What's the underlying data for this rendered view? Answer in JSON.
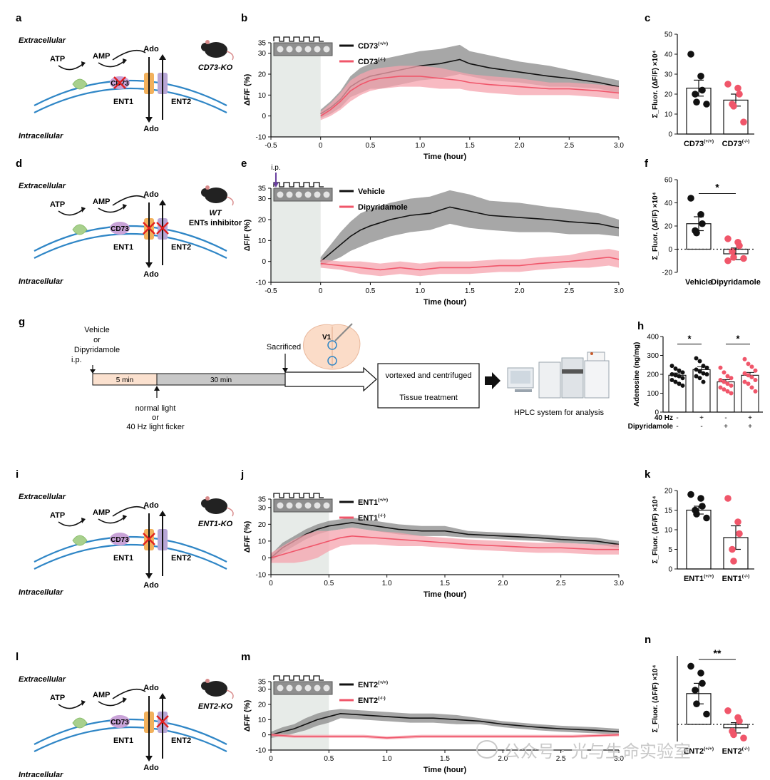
{
  "colors": {
    "wt_line": "#111111",
    "wt_band": "#8a8a8a",
    "ko_line": "#f0566a",
    "ko_band": "#f5a3ad",
    "membrane": "#2f86c6",
    "ent1": "#f2b15c",
    "ent2": "#b7a6d6",
    "cd73": "#c9a3d8",
    "enzyme": "#a8d08d",
    "light": "#e7ebe8",
    "timebar_pre": "#fbe1cf",
    "timebar_main": "#c8c8c8"
  },
  "panels": [
    {
      "label": "a",
      "extracellular": "Extracellular",
      "intracellular": "Intracellular",
      "atp": "ATP",
      "amp": "AMP",
      "ado_top": "Ado",
      "ado_bottom": "Ado",
      "cd73": "CD73",
      "ent1": "ENT1",
      "ent2": "ENT2",
      "mouse_label": "CD73-KO",
      "mouse_sublabel": "",
      "blocked": [
        "cd73"
      ]
    },
    {
      "label": "d",
      "extracellular": "Extracellular",
      "intracellular": "Intracellular",
      "atp": "ATP",
      "amp": "AMP",
      "ado_top": "Ado",
      "ado_bottom": "Ado",
      "cd73": "CD73",
      "ent1": "ENT1",
      "ent2": "ENT2",
      "mouse_label": "WT",
      "mouse_sublabel": "ENTs inhibitor",
      "blocked": [
        "ent1",
        "ent2"
      ]
    },
    {
      "label": "i",
      "extracellular": "Extracellular",
      "intracellular": "Intracellular",
      "atp": "ATP",
      "amp": "AMP",
      "ado_top": "Ado",
      "ado_bottom": "Ado",
      "cd73": "CD73",
      "ent1": "ENT1",
      "ent2": "ENT2",
      "mouse_label": "ENT1-KO",
      "mouse_sublabel": "",
      "blocked": [
        "ent1"
      ]
    },
    {
      "label": "l",
      "extracellular": "Extracellular",
      "intracellular": "Intracellular",
      "atp": "ATP",
      "amp": "AMP",
      "ado_top": "Ado",
      "ado_bottom": "Ado",
      "cd73": "CD73",
      "ent1": "ENT1",
      "ent2": "ENT2",
      "mouse_label": "ENT2-KO",
      "mouse_sublabel": "",
      "blocked": [
        "ent2"
      ]
    }
  ],
  "panel_g": {
    "label": "g",
    "injection": [
      "Vehicle",
      "or",
      "Dipyridamole",
      "i.p."
    ],
    "pre_label": "5 min",
    "main_label": "30 min",
    "sacrificed": "Sacrificed",
    "region": "V1",
    "stimulus": [
      "normal light",
      "or",
      "40 Hz light ficker"
    ],
    "treatment_lines": [
      "vortexed  and centrifuged",
      "Tissue treatment"
    ],
    "hplc": "HPLC system for analysis"
  },
  "chart_data": [
    {
      "panel": "b",
      "type": "line",
      "xlabel": "Time (hour)",
      "ylabel": "ΔF/F (%)",
      "xlim": [
        -0.5,
        3.0
      ],
      "ylim": [
        -10,
        35
      ],
      "xticks": [
        -0.5,
        0,
        0.5,
        1.0,
        1.5,
        2.0,
        2.5,
        3.0
      ],
      "xtick_labels": [
        "-0.5",
        "0",
        "0.5",
        "1.0",
        "1.5",
        "2.0",
        "2.5",
        "3.0"
      ],
      "yticks": [
        -10,
        0,
        10,
        20,
        30,
        35
      ],
      "shade": [
        -0.5,
        0.0
      ],
      "series": [
        {
          "name": "CD73",
          "sup": "(+/+)",
          "color": "#111111",
          "band": "#8a8a8a",
          "x": [
            0,
            0.1,
            0.2,
            0.3,
            0.4,
            0.5,
            0.6,
            0.8,
            1.0,
            1.2,
            1.4,
            1.5,
            1.7,
            2.0,
            2.3,
            2.5,
            2.8,
            3.0
          ],
          "y": [
            1,
            4,
            8,
            14,
            17,
            19,
            20,
            22,
            24,
            25,
            27,
            25,
            23,
            21,
            19,
            18,
            16,
            14
          ],
          "err": [
            2,
            3,
            4,
            5,
            6,
            6,
            7,
            7,
            7,
            7,
            7,
            6,
            6,
            5,
            5,
            4,
            3,
            3
          ]
        },
        {
          "name": "CD73",
          "sup": "(-/-)",
          "color": "#f0566a",
          "band": "#f5a3ad",
          "x": [
            0,
            0.1,
            0.2,
            0.3,
            0.4,
            0.5,
            0.6,
            0.8,
            1.0,
            1.2,
            1.4,
            1.5,
            1.7,
            2.0,
            2.3,
            2.5,
            2.8,
            3.0
          ],
          "y": [
            0,
            3,
            7,
            12,
            15,
            17,
            18,
            19,
            19,
            18,
            17,
            16,
            15,
            14,
            13,
            13,
            12,
            11
          ],
          "err": [
            2,
            3,
            4,
            5,
            5,
            5,
            5,
            5,
            5,
            5,
            4,
            4,
            4,
            4,
            3,
            3,
            3,
            3
          ]
        }
      ]
    },
    {
      "panel": "e",
      "type": "line",
      "xlabel": "Time (hour)",
      "ylabel": "ΔF/F (%)",
      "xlim": [
        -0.5,
        3.0
      ],
      "ylim": [
        -10,
        35
      ],
      "xticks": [
        -0.5,
        0,
        0.5,
        1.0,
        1.5,
        2.0,
        2.5,
        3.0
      ],
      "xtick_labels": [
        "-0.5",
        "0",
        "0.5",
        "1.0",
        "1.5",
        "2.0",
        "2.5",
        "3.0"
      ],
      "yticks": [
        -10,
        0,
        10,
        20,
        30,
        35
      ],
      "shade": [
        -0.5,
        0.0
      ],
      "injection_label": "i.p.",
      "injection_x": -0.45,
      "series": [
        {
          "name": "Vehicle",
          "sup": "",
          "color": "#111111",
          "band": "#8a8a8a",
          "x": [
            0,
            0.1,
            0.2,
            0.3,
            0.4,
            0.5,
            0.7,
            0.9,
            1.1,
            1.3,
            1.5,
            1.7,
            2.0,
            2.3,
            2.5,
            2.8,
            3.0
          ],
          "y": [
            0,
            4,
            8,
            12,
            15,
            17,
            20,
            22,
            23,
            26,
            24,
            22,
            21,
            20,
            19,
            18,
            16
          ],
          "err": [
            2,
            4,
            6,
            7,
            8,
            8,
            8,
            8,
            8,
            8,
            8,
            7,
            7,
            6,
            6,
            5,
            4
          ]
        },
        {
          "name": "Dipyridamole",
          "sup": "",
          "color": "#f0566a",
          "band": "#f5a3ad",
          "x": [
            0,
            0.2,
            0.4,
            0.6,
            0.8,
            1.0,
            1.2,
            1.5,
            1.8,
            2.0,
            2.2,
            2.5,
            2.7,
            2.9,
            3.0
          ],
          "y": [
            -1,
            -2,
            -3,
            -4,
            -3,
            -4,
            -3,
            -3,
            -2,
            -2,
            -1,
            0,
            1,
            2,
            1
          ],
          "err": [
            2,
            2,
            3,
            3,
            3,
            3,
            3,
            3,
            3,
            3,
            3,
            3,
            4,
            4,
            4
          ]
        }
      ]
    },
    {
      "panel": "j",
      "type": "line",
      "xlabel": "Time (hour)",
      "ylabel": "ΔF/F (%)",
      "xlim": [
        0,
        3.0
      ],
      "ylim": [
        -10,
        35
      ],
      "xticks": [
        0,
        0.5,
        1.0,
        1.5,
        2.0,
        2.5,
        3.0
      ],
      "xtick_labels": [
        "0",
        "0.5",
        "1.0",
        "1.5",
        "2.0",
        "2.5",
        "3.0"
      ],
      "yticks": [
        -10,
        0,
        10,
        20,
        30,
        35
      ],
      "shade": [
        0,
        0.5
      ],
      "series": [
        {
          "name": "ENT1",
          "sup": "(+/+)",
          "color": "#111111",
          "band": "#8a8a8a",
          "x": [
            0,
            0.1,
            0.2,
            0.3,
            0.4,
            0.5,
            0.6,
            0.7,
            0.9,
            1.1,
            1.3,
            1.5,
            1.7,
            2.0,
            2.3,
            2.5,
            2.8,
            3.0
          ],
          "y": [
            0,
            6,
            10,
            14,
            17,
            19,
            20,
            21,
            19,
            17,
            16,
            16,
            14,
            13,
            12,
            11,
            10,
            8
          ],
          "err": [
            2,
            3,
            3,
            3,
            3,
            3,
            3,
            3,
            3,
            3,
            3,
            3,
            2,
            2,
            2,
            2,
            2,
            2
          ]
        },
        {
          "name": "ENT1",
          "sup": "(-/-)",
          "color": "#f0566a",
          "band": "#f5a3ad",
          "x": [
            0,
            0.1,
            0.2,
            0.3,
            0.4,
            0.5,
            0.6,
            0.7,
            0.9,
            1.1,
            1.3,
            1.5,
            1.7,
            2.0,
            2.3,
            2.5,
            2.8,
            3.0
          ],
          "y": [
            0,
            2,
            4,
            6,
            8,
            10,
            12,
            13,
            12,
            11,
            10,
            9,
            8,
            7,
            6,
            6,
            5,
            5
          ],
          "err": [
            3,
            5,
            7,
            8,
            8,
            6,
            5,
            5,
            4,
            4,
            3,
            3,
            3,
            3,
            3,
            3,
            3,
            3
          ]
        }
      ]
    },
    {
      "panel": "m",
      "type": "line",
      "xlabel": "Time (hour)",
      "ylabel": "ΔF/F (%)",
      "xlim": [
        0,
        3.0
      ],
      "ylim": [
        -10,
        35
      ],
      "xticks": [
        0,
        0.5,
        1.0,
        1.5,
        2.0,
        2.5,
        3.0
      ],
      "xtick_labels": [
        "0",
        "0.5",
        "1.0",
        "1.5",
        "2.0",
        "2.5",
        "3.0"
      ],
      "yticks": [
        -10,
        0,
        10,
        20,
        30,
        35
      ],
      "shade": [
        0,
        0.5
      ],
      "series": [
        {
          "name": "ENT2",
          "sup": "(+/+)",
          "color": "#111111",
          "band": "#8a8a8a",
          "x": [
            0,
            0.1,
            0.2,
            0.3,
            0.4,
            0.5,
            0.6,
            0.8,
            1.0,
            1.2,
            1.4,
            1.6,
            1.8,
            2.0,
            2.3,
            2.5,
            2.8,
            3.0
          ],
          "y": [
            0,
            2,
            4,
            7,
            10,
            12,
            14,
            13,
            12,
            11,
            11,
            10,
            9,
            7,
            5,
            4,
            3,
            2
          ],
          "err": [
            2,
            3,
            3,
            4,
            4,
            4,
            3,
            3,
            3,
            3,
            3,
            3,
            2,
            2,
            2,
            2,
            2,
            2
          ]
        },
        {
          "name": "ENT2",
          "sup": "(-/-)",
          "color": "#f0566a",
          "band": "#f5a3ad",
          "x": [
            0,
            0.2,
            0.4,
            0.6,
            0.8,
            1.0,
            1.3,
            1.6,
            2.0,
            2.3,
            2.6,
            3.0
          ],
          "y": [
            0,
            -1,
            -1,
            -1,
            -1,
            -2,
            -1,
            -1,
            -1,
            -1,
            -1,
            0
          ],
          "err": [
            1,
            1,
            1,
            1,
            1,
            1,
            1,
            1,
            1,
            1,
            1,
            1
          ]
        }
      ]
    },
    {
      "panel": "c",
      "type": "bar",
      "ylabel": "Σ_Fluor. (ΔF/F) ×10⁴",
      "ylim": [
        0,
        50
      ],
      "yticks": [
        0,
        10,
        20,
        30,
        40,
        50
      ],
      "zero_dotted": false,
      "categories": [
        "CD73",
        "CD73"
      ],
      "category_sups": [
        "(+/+)",
        "(-/-)"
      ],
      "values": [
        23,
        17
      ],
      "errors": [
        4,
        3
      ],
      "points": [
        [
          40,
          29,
          22,
          20,
          16,
          15
        ],
        [
          25,
          23,
          20,
          15,
          14,
          6
        ]
      ],
      "significance": []
    },
    {
      "panel": "f",
      "type": "bar",
      "ylabel": "Σ_Fluor. (ΔF/F) ×10⁴",
      "ylim": [
        -20,
        60
      ],
      "yticks": [
        -20,
        0,
        20,
        40,
        60
      ],
      "zero_dotted": true,
      "categories": [
        "Vehicle",
        "Dipyridamole"
      ],
      "category_sups": [
        "",
        ""
      ],
      "values": [
        22,
        -4
      ],
      "errors": [
        6,
        5
      ],
      "points": [
        [
          44,
          30,
          22,
          16,
          14
        ],
        [
          9,
          6,
          3,
          -2,
          -7,
          -8,
          -10
        ]
      ],
      "significance": [
        {
          "from": 0,
          "to": 1,
          "y": 48,
          "text": "*"
        }
      ]
    },
    {
      "panel": "k",
      "type": "bar",
      "ylabel": "Σ_Fluor. (ΔF/F) ×10⁴",
      "ylim": [
        0,
        20
      ],
      "yticks": [
        0,
        5,
        10,
        15,
        20
      ],
      "zero_dotted": false,
      "categories": [
        "ENT1",
        "ENT1"
      ],
      "category_sups": [
        "(+/+)",
        "(-/-)"
      ],
      "values": [
        15,
        8
      ],
      "errors": [
        1,
        3
      ],
      "points": [
        [
          19,
          18,
          16,
          15,
          14,
          13
        ],
        [
          18,
          12,
          9,
          5,
          2
        ]
      ],
      "significance": []
    },
    {
      "panel": "n",
      "type": "bar",
      "ylabel": "Σ_Fluor. (ΔF/F) ×10⁴",
      "ylim": [
        -5,
        20
      ],
      "yticks": [],
      "zero_dotted": true,
      "categories": [
        "ENT2",
        "ENT2"
      ],
      "category_sups": [
        "(+/+)",
        "(-/-)"
      ],
      "values": [
        9,
        -1
      ],
      "errors": [
        3,
        1.5
      ],
      "points": [
        [
          17,
          15,
          12,
          10,
          6,
          3
        ],
        [
          4,
          2,
          1,
          -2,
          -3,
          -4
        ]
      ],
      "significance": [
        {
          "from": 0,
          "to": 1,
          "y": 19,
          "text": "**"
        }
      ]
    },
    {
      "panel": "h",
      "type": "bar",
      "ylabel": "Adenosine (ng/mg)",
      "ylim": [
        0,
        400
      ],
      "yticks": [
        0,
        100,
        200,
        300,
        400
      ],
      "zero_dotted": false,
      "row_labels": [
        "40 Hz",
        "Dipyridamole"
      ],
      "row_values": [
        [
          "-",
          "+",
          "-",
          "+"
        ],
        [
          "-",
          "-",
          "+",
          "+"
        ]
      ],
      "values": [
        195,
        225,
        160,
        195
      ],
      "errors": [
        12,
        15,
        12,
        15
      ],
      "bar_colors": [
        "#111111",
        "#111111",
        "#f0566a",
        "#f0566a"
      ],
      "points": [
        [
          245,
          230,
          220,
          210,
          200,
          195,
          190,
          180,
          170,
          160,
          150,
          140
        ],
        [
          285,
          270,
          245,
          235,
          225,
          215,
          205,
          200,
          190,
          180,
          160
        ],
        [
          235,
          210,
          190,
          180,
          170,
          160,
          150,
          140,
          130,
          120,
          110,
          100
        ],
        [
          280,
          255,
          240,
          220,
          205,
          195,
          185,
          170,
          160,
          150,
          130,
          110
        ]
      ],
      "significance": [
        {
          "from": 0,
          "to": 1,
          "y": 360,
          "text": "*"
        },
        {
          "from": 2,
          "to": 3,
          "y": 360,
          "text": "*"
        }
      ]
    }
  ],
  "watermark": "公众号 · 光与生命实验室"
}
